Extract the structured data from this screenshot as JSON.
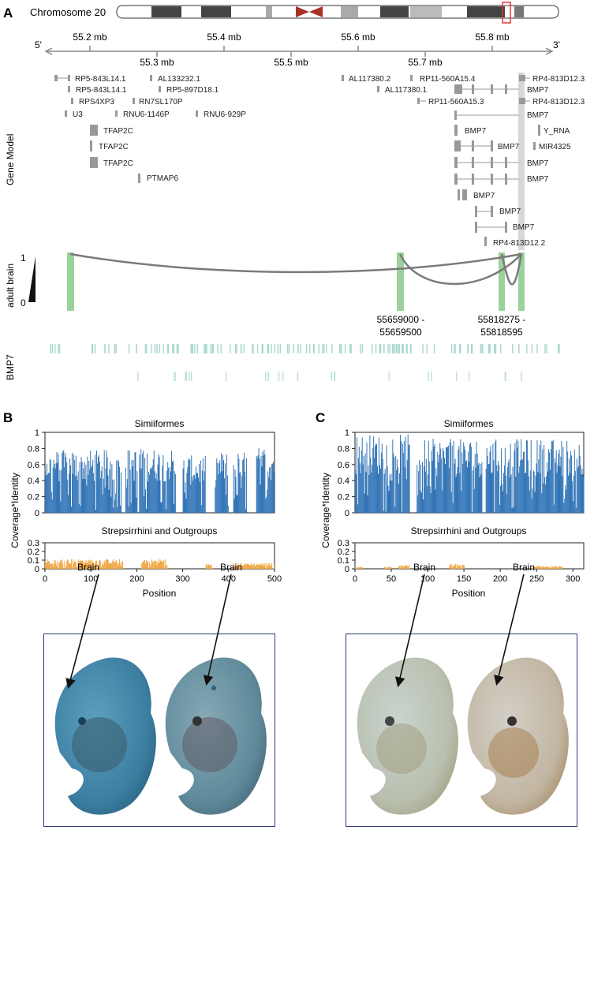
{
  "panel_a": {
    "letter": "A",
    "chromosome_label": "Chromosome 20",
    "end_left": "5'",
    "end_right": "3'",
    "top_ticks": [
      "55.2 mb",
      "55.4 mb",
      "55.6 mb",
      "55.8 mb"
    ],
    "bottom_ticks": [
      "55.3 mb",
      "55.5 mb",
      "55.7 mb"
    ],
    "track_gene_model": "Gene Model",
    "track_adult_brain": "adult brain",
    "track_bmp7": "BMP7",
    "scale_max": "1",
    "scale_min": "0",
    "genes": [
      "RP5-843L14.1",
      "AL133232.1",
      "RP5-843L14.1",
      "RP5-897D18.1",
      "RPS4XP3",
      "RN7SL170P",
      "U3",
      "RNU6-1146P",
      "RNU6-929P",
      "TFAP2C",
      "TFAP2C",
      "TFAP2C",
      "PTMAP6",
      "AL117380.2",
      "RP11-560A15.4",
      "RP4-813D12.3",
      "AL117380.1",
      "BMP7",
      "RP11-560A15.3",
      "RP4-813D12.3",
      "BMP7",
      "BMP7",
      "Y_RNA",
      "BMP7",
      "MIR4325",
      "BMP7",
      "BMP7",
      "BMP7",
      "BMP7",
      "BMP7",
      "RP4-813D12.2"
    ],
    "region1": [
      "55659000 -",
      "55659500"
    ],
    "region2": [
      "55818275 -",
      "55818595"
    ]
  },
  "panel_b": {
    "letter": "B",
    "ylabel": "Coverage*Identity",
    "xlabel": "Position",
    "brain_labels": [
      "Brain",
      "Brain"
    ]
  },
  "panel_c": {
    "letter": "C",
    "ylabel": "Coverage*Identity",
    "xlabel": "Position",
    "brain_labels": [
      "Brain",
      "Brain"
    ]
  },
  "chart_data": [
    {
      "type": "bar",
      "panel": "B",
      "title": "Simiiformes",
      "xlim": [
        0,
        500
      ],
      "ylim": [
        0,
        1
      ],
      "x_ticks": [
        0,
        100,
        200,
        300,
        400,
        500
      ],
      "y_ticks": [
        0,
        0.2,
        0.4,
        0.6,
        0.8,
        1
      ],
      "color": "#2e72b5",
      "segments": [
        [
          0,
          165,
          0.68
        ],
        [
          175,
          200,
          0.7
        ],
        [
          205,
          285,
          0.7
        ],
        [
          300,
          350,
          0.62
        ],
        [
          370,
          400,
          0.66
        ],
        [
          410,
          440,
          0.66
        ],
        [
          460,
          500,
          0.72
        ]
      ]
    },
    {
      "type": "bar",
      "panel": "B",
      "title": "Strepsirrhini and Outgroups",
      "xlim": [
        0,
        500
      ],
      "ylim": [
        0,
        0.3
      ],
      "x_ticks": [
        0,
        100,
        200,
        300,
        400,
        500
      ],
      "y_ticks": [
        0,
        0.1,
        0.2,
        0.3
      ],
      "color": "#f0a540",
      "segments": [
        [
          0,
          170,
          0.1
        ],
        [
          210,
          265,
          0.1
        ],
        [
          350,
          365,
          0.05
        ],
        [
          410,
          500,
          0.06
        ]
      ]
    },
    {
      "type": "bar",
      "panel": "C",
      "title": "Simiiformes",
      "xlim": [
        0,
        315
      ],
      "ylim": [
        0,
        1
      ],
      "x_ticks": [
        0,
        50,
        100,
        150,
        200,
        250,
        300
      ],
      "y_ticks": [
        0,
        0.2,
        0.4,
        0.6,
        0.8,
        1
      ],
      "color": "#2e72b5",
      "segments": [
        [
          0,
          75,
          0.85
        ],
        [
          85,
          175,
          0.8
        ],
        [
          180,
          315,
          0.8
        ]
      ]
    },
    {
      "type": "bar",
      "panel": "C",
      "title": "Strepsirrhini and Outgroups",
      "xlim": [
        0,
        315
      ],
      "ylim": [
        0,
        0.3
      ],
      "x_ticks": [
        0,
        50,
        100,
        150,
        200,
        250,
        300
      ],
      "y_ticks": [
        0,
        0.1,
        0.2,
        0.3
      ],
      "color": "#f0a540",
      "segments": [
        [
          0,
          10,
          0.02
        ],
        [
          40,
          50,
          0.02
        ],
        [
          60,
          75,
          0.04
        ],
        [
          130,
          150,
          0.05
        ],
        [
          245,
          285,
          0.03
        ]
      ]
    }
  ]
}
